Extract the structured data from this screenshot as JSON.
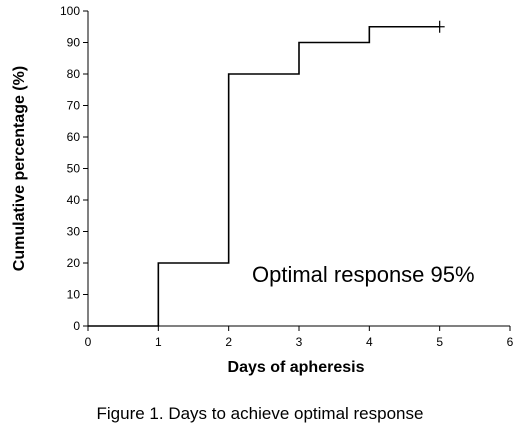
{
  "chart_data": {
    "type": "line",
    "step": true,
    "xlabel": "Days of apheresis",
    "ylabel": "Cumulative percentage (%)",
    "xlim": [
      0,
      6
    ],
    "ylim": [
      0,
      100
    ],
    "x_ticks": [
      0,
      1,
      2,
      3,
      4,
      5,
      6
    ],
    "y_ticks": [
      0,
      10,
      20,
      30,
      40,
      50,
      60,
      70,
      80,
      90,
      100
    ],
    "grid": false,
    "legend": "none",
    "series": [
      {
        "x": [
          0,
          1,
          2,
          3,
          4,
          5
        ],
        "y": [
          0,
          20,
          80,
          90,
          95,
          95
        ],
        "censored_x": [
          5
        ],
        "color": "#000000"
      }
    ],
    "annotation": "Optimal response 95%"
  },
  "caption": "Figure 1. Days to achieve optimal response"
}
